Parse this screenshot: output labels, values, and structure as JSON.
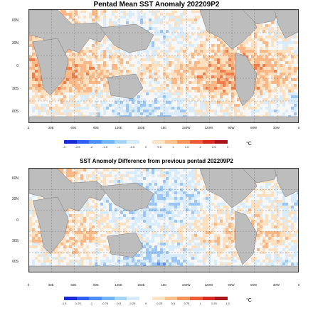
{
  "panels": [
    {
      "title": "Pentad Mean SST Anomaly 202209P2"
    },
    {
      "title": "SST Anomoly Difference from previous pentad 202209P2"
    }
  ],
  "lat_labels": [
    "60N",
    "30N",
    "0",
    "30S",
    "60S"
  ],
  "lon_labels": [
    "0",
    "30E",
    "60E",
    "90E",
    "120E",
    "150E",
    "180",
    "150W",
    "120W",
    "90W",
    "60W",
    "30W",
    "0"
  ],
  "colorbar1": {
    "labels": [
      "-3",
      "-2.5",
      "-2",
      "-1.5",
      "-1",
      "-0.5",
      "0",
      "0.5",
      "1",
      "1.5",
      "2",
      "2.5",
      "3"
    ],
    "unit": "°C",
    "colors": [
      "#1a2bd6",
      "#2f5ef0",
      "#4d8ff5",
      "#73b4f7",
      "#a6d4f8",
      "#d6ecfa",
      "#ffffff",
      "#fde4c6",
      "#fbc18c",
      "#f7935a",
      "#ef5a3a",
      "#d62a22",
      "#a8151a"
    ]
  },
  "colorbar2": {
    "labels": [
      "-1.5",
      "-1.25",
      "-1",
      "-0.75",
      "-0.5",
      "-0.25",
      "0",
      "0.25",
      "0.5",
      "0.75",
      "1",
      "1.25",
      "1.5"
    ],
    "unit": "°C",
    "colors": [
      "#1a2bd6",
      "#2f5ef0",
      "#4d8ff5",
      "#73b4f7",
      "#a6d4f8",
      "#d6ecfa",
      "#ffffff",
      "#fde4c6",
      "#fbc18c",
      "#f7935a",
      "#ef5a3a",
      "#d62a22",
      "#a8151a"
    ]
  }
}
